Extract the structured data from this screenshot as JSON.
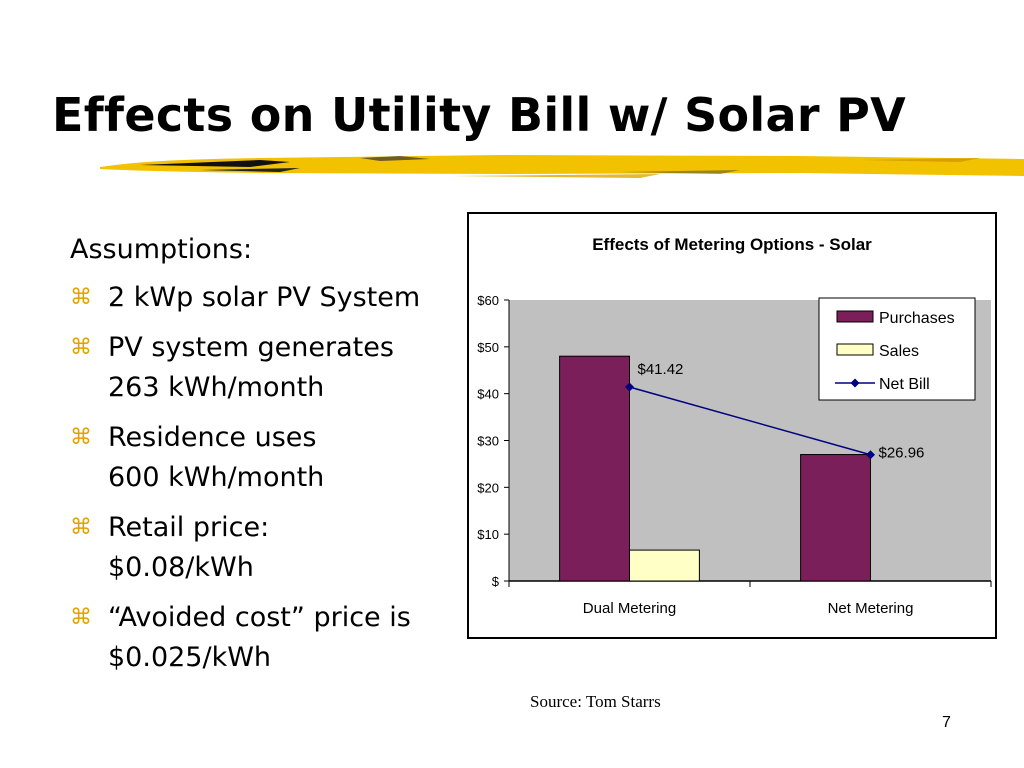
{
  "slide": {
    "title": "Effects on Utility Bill w/ Solar PV",
    "assumptions_heading": "Assumptions:",
    "bullet_marker": "⌘",
    "bullets": [
      [
        "2 kWp solar PV System"
      ],
      [
        "PV system generates",
        "263 kWh/month"
      ],
      [
        "Residence uses",
        "600 kWh/month"
      ],
      [
        "Retail price:",
        "$0.08/kWh"
      ],
      [
        "“Avoided cost” price is",
        "$0.025/kWh"
      ]
    ],
    "source": "Source: Tom Starrs",
    "page_number": "7"
  },
  "colors": {
    "purchases": "#7b1f5a",
    "sales": "#ffffc6",
    "net_bill": "#000080",
    "plot_area": "#c0c0c0",
    "bullet": "#e3a100",
    "underline": "#f2c200"
  },
  "chart_data": {
    "type": "bar",
    "title": "Effects of Metering Options - Solar",
    "categories": [
      "Dual Metering",
      "Net Metering"
    ],
    "series": [
      {
        "name": "Purchases",
        "type": "bar",
        "values": [
          48.0,
          27.0
        ]
      },
      {
        "name": "Sales",
        "type": "bar",
        "values": [
          6.6,
          0
        ]
      },
      {
        "name": "Net Bill",
        "type": "line",
        "values": [
          41.42,
          26.96
        ]
      }
    ],
    "data_labels": [
      "$41.42",
      "$26.96"
    ],
    "y_ticks": [
      0,
      10,
      20,
      30,
      40,
      50,
      60
    ],
    "y_tick_labels": [
      "$",
      "$10",
      "$20",
      "$30",
      "$40",
      "$50",
      "$60"
    ],
    "ylim": [
      0,
      60
    ],
    "xlabel": "",
    "ylabel": "",
    "legend_position": "top-right",
    "grid": false
  }
}
